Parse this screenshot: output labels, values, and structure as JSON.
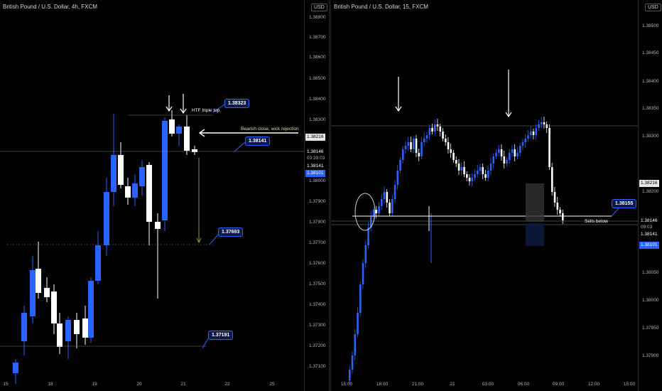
{
  "left": {
    "title": "British Pound / U.S. Dollar, 4h, FXCM",
    "currency": "USD",
    "price_ticks": [
      "1.38800",
      "1.38700",
      "1.38600",
      "1.38500",
      "1.38400",
      "1.38300",
      "1.37900",
      "1.37800",
      "1.37700",
      "1.37600",
      "1.37500",
      "1.37400",
      "1.37300",
      "1.37200",
      "1.37100"
    ],
    "time_ticks": [
      "15",
      "18",
      "19",
      "20",
      "21",
      "22",
      "25"
    ],
    "price_boxes": {
      "upper": "1.38216",
      "current": "1.38146",
      "countdown": "03:39:03",
      "mid": "1.38141",
      "bid": "1.38101",
      "lower": "1.38000"
    },
    "annotations": {
      "triple_top_label": "HTF triple top",
      "bearish_label": "Bearish close, wick rejection",
      "callout_top": "1.38323",
      "callout_current": "1.38141",
      "callout_target": "1.37693",
      "callout_bottom": "1.37191"
    }
  },
  "right": {
    "title": "British Pound / U.S. Dollar, 15, FXCM",
    "currency": "USD",
    "price_ticks": [
      "1.38500",
      "1.38450",
      "1.38400",
      "1.38350",
      "1.38300",
      "1.38200",
      "1.38050",
      "1.38000",
      "1.37950",
      "1.37900"
    ],
    "time_ticks": [
      "15:00",
      "18:00",
      "21:00",
      "21",
      "03:00",
      "06:00",
      "09:00",
      "12:00",
      "15:00"
    ],
    "price_boxes": {
      "upper": "1.38216",
      "current": "1.38146",
      "countdown": "09:03",
      "mid": "1.38141",
      "bid": "1.38101"
    },
    "annotations": {
      "callout_level": "1.38155",
      "sells_label": "Sells below"
    }
  },
  "colors": {
    "bull": "#2962ff",
    "bear": "#ffffff",
    "background": "#000000",
    "callout_border": "#2962ff",
    "bid_box": "#2962ff",
    "target_arrow": "#c8a96e"
  }
}
